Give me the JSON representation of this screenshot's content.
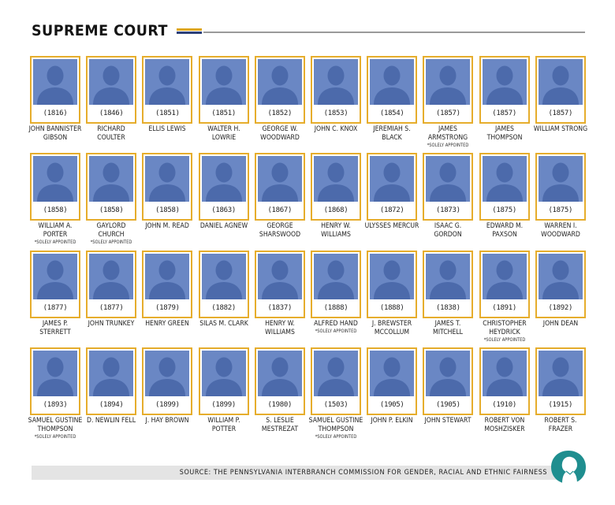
{
  "title": "SUPREME COURT",
  "source": "SOURCE: THE PENNSYLVANIA INTERBRANCH COMMISSION FOR GENDER, RACIAL AND ETHNIC FAIRNESS",
  "colors": {
    "frame": "#e6ad2c",
    "photo": "#6a87c4",
    "silhouette": "#4c6aab",
    "accent_yellow": "#e0a81e",
    "accent_blue": "#2b3f7a",
    "logo": "#1f8e8f"
  },
  "justices": [
    {
      "year": "(1816)",
      "name": "JOHN BANNISTER GIBSON",
      "note": ""
    },
    {
      "year": "(1846)",
      "name": "RICHARD COULTER",
      "note": ""
    },
    {
      "year": "(1851)",
      "name": "ELLIS LEWIS",
      "note": ""
    },
    {
      "year": "(1851)",
      "name": "WALTER H. LOWRIE",
      "note": ""
    },
    {
      "year": "(1852)",
      "name": "GEORGE W. WOODWARD",
      "note": ""
    },
    {
      "year": "(1853)",
      "name": "JOHN C. KNOX",
      "note": ""
    },
    {
      "year": "(1854)",
      "name": "JEREMIAH S. BLACK",
      "note": ""
    },
    {
      "year": "(1857)",
      "name": "JAMES ARMSTRONG",
      "note": "*SOLELY APPOINTED"
    },
    {
      "year": "(1857)",
      "name": "JAMES THOMPSON",
      "note": ""
    },
    {
      "year": "(1857)",
      "name": "WILLIAM STRONG",
      "note": ""
    },
    {
      "year": "(1858)",
      "name": "WILLIAM A. PORTER",
      "note": "*SOLELY APPOINTED"
    },
    {
      "year": "(1858)",
      "name": "GAYLORD CHURCH",
      "note": "*SOLELY APPOINTED"
    },
    {
      "year": "(1858)",
      "name": "JOHN M. READ",
      "note": ""
    },
    {
      "year": "(1863)",
      "name": "DANIEL AGNEW",
      "note": ""
    },
    {
      "year": "(1867)",
      "name": "GEORGE SHARSWOOD",
      "note": ""
    },
    {
      "year": "(1868)",
      "name": "HENRY W. WILLIAMS",
      "note": ""
    },
    {
      "year": "(1872)",
      "name": "ULYSSES MERCUR",
      "note": ""
    },
    {
      "year": "(1873)",
      "name": "ISAAC G. GORDON",
      "note": ""
    },
    {
      "year": "(1875)",
      "name": "EDWARD M. PAXSON",
      "note": ""
    },
    {
      "year": "(1875)",
      "name": "WARREN I. WOODWARD",
      "note": ""
    },
    {
      "year": "(1877)",
      "name": "JAMES P. STERRETT",
      "note": ""
    },
    {
      "year": "(1877)",
      "name": "JOHN TRUNKEY",
      "note": ""
    },
    {
      "year": "(1879)",
      "name": "HENRY GREEN",
      "note": ""
    },
    {
      "year": "(1882)",
      "name": "SILAS M. CLARK",
      "note": ""
    },
    {
      "year": "(1837)",
      "name": "HENRY W. WILLIAMS",
      "note": ""
    },
    {
      "year": "(1888)",
      "name": "ALFRED HAND",
      "note": "*SOLELY APPOINTED"
    },
    {
      "year": "(1888)",
      "name": "J. BREWSTER MCCOLLUM",
      "note": ""
    },
    {
      "year": "(1838)",
      "name": "JAMES T. MITCHELL",
      "note": ""
    },
    {
      "year": "(1891)",
      "name": "CHRISTOPHER HEYDRICK",
      "note": "*SOLELY APPOINTED"
    },
    {
      "year": "(1892)",
      "name": "JOHN DEAN",
      "note": ""
    },
    {
      "year": "(1893)",
      "name": "SAMUEL GUSTINE THOMPSON",
      "note": "*SOLELY APPOINTED"
    },
    {
      "year": "(1894)",
      "name": "D. NEWLIN FELL",
      "note": ""
    },
    {
      "year": "(1899)",
      "name": "J. HAY BROWN",
      "note": ""
    },
    {
      "year": "(1899)",
      "name": "WILLIAM P. POTTER",
      "note": ""
    },
    {
      "year": "(1980)",
      "name": "S. LESLIE MESTREZAT",
      "note": ""
    },
    {
      "year": "(1503)",
      "name": "SAMUEL GUSTINE THOMPSON",
      "note": "*SOLELY APPOINTED"
    },
    {
      "year": "(1905)",
      "name": "JOHN P. ELKIN",
      "note": ""
    },
    {
      "year": "(1905)",
      "name": "JOHN STEWART",
      "note": ""
    },
    {
      "year": "(1910)",
      "name": "ROBERT VON MOSHZISKER",
      "note": ""
    },
    {
      "year": "(1915)",
      "name": "ROBERT S. FRAZER",
      "note": ""
    }
  ]
}
